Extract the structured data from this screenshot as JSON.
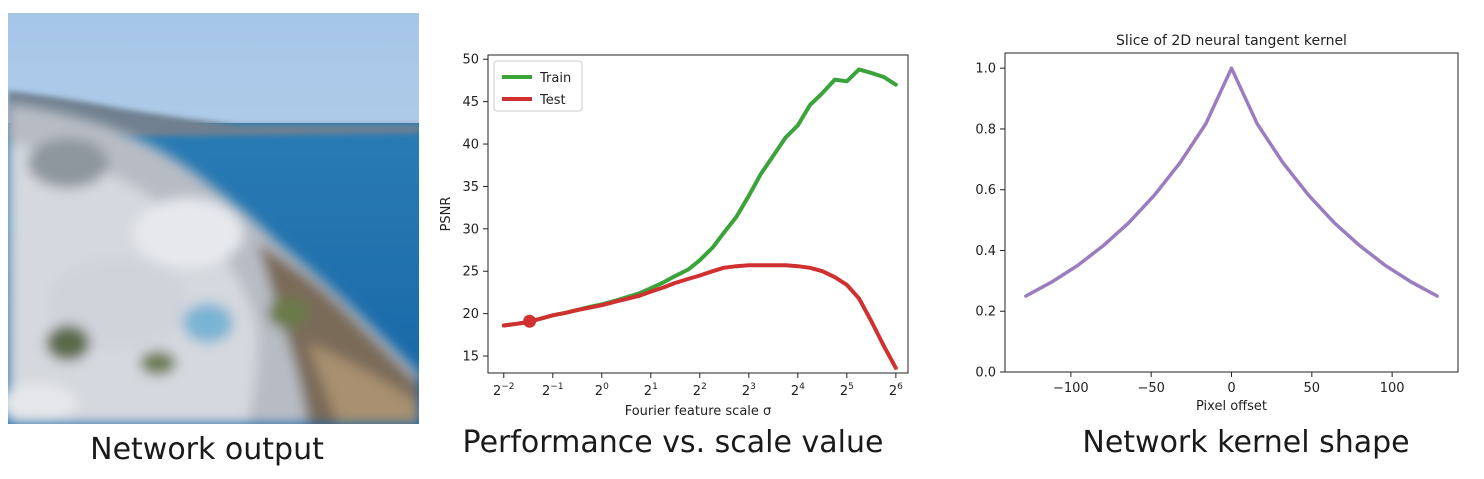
{
  "captions": {
    "photo": "Network output",
    "chart1": "Performance vs. scale value",
    "chart2": "Network kernel shape"
  },
  "colors": {
    "train": "#3aa33a",
    "test": "#d03030",
    "kernel": "#9a7cc0",
    "sky": "#a9c8e6",
    "sea": "#1b72b0"
  },
  "chart_data": [
    {
      "type": "line",
      "title": "",
      "xlabel": "Fourier feature scale σ",
      "ylabel": "PSNR",
      "xscale": "log2",
      "xlim": [
        0.2,
        76
      ],
      "ylim": [
        13,
        50.5
      ],
      "xticks": [
        {
          "value": 0.25,
          "base": "2",
          "exp": "−2"
        },
        {
          "value": 0.5,
          "base": "2",
          "exp": "−1"
        },
        {
          "value": 1,
          "base": "2",
          "exp": "0"
        },
        {
          "value": 2,
          "base": "2",
          "exp": "1"
        },
        {
          "value": 4,
          "base": "2",
          "exp": "2"
        },
        {
          "value": 8,
          "base": "2",
          "exp": "3"
        },
        {
          "value": 16,
          "base": "2",
          "exp": "4"
        },
        {
          "value": 32,
          "base": "2",
          "exp": "5"
        },
        {
          "value": 64,
          "base": "2",
          "exp": "6"
        }
      ],
      "yticks": [
        15,
        20,
        25,
        30,
        35,
        40,
        45,
        50
      ],
      "legend": {
        "position": "top-left"
      },
      "series": [
        {
          "name": "Train",
          "color": "#3aa33a",
          "x": [
            0.25,
            0.3,
            0.35,
            0.42,
            0.5,
            0.6,
            0.7,
            0.84,
            1.0,
            1.2,
            1.4,
            1.7,
            2.0,
            2.4,
            2.8,
            3.4,
            4.0,
            4.8,
            5.6,
            6.7,
            8.0,
            9.5,
            11.3,
            13.5,
            16.0,
            19.0,
            22.6,
            27.0,
            32.0,
            38.0,
            45.0,
            54.0,
            64.0
          ],
          "y": [
            18.6,
            18.8,
            19.0,
            19.4,
            19.8,
            20.1,
            20.4,
            20.8,
            21.1,
            21.5,
            21.9,
            22.4,
            23.0,
            23.7,
            24.4,
            25.2,
            26.3,
            27.8,
            29.5,
            31.4,
            33.9,
            36.5,
            38.6,
            40.8,
            42.2,
            44.6,
            46.0,
            47.6,
            47.4,
            48.8,
            48.4,
            47.9,
            47.0
          ]
        },
        {
          "name": "Test",
          "color": "#d03030",
          "x": [
            0.25,
            0.3,
            0.35,
            0.42,
            0.5,
            0.6,
            0.7,
            0.84,
            1.0,
            1.2,
            1.4,
            1.7,
            2.0,
            2.4,
            2.8,
            3.4,
            4.0,
            4.8,
            5.6,
            6.7,
            8.0,
            9.5,
            11.3,
            13.5,
            16.0,
            19.0,
            22.6,
            27.0,
            32.0,
            38.0,
            45.0,
            54.0,
            64.0
          ],
          "y": [
            18.6,
            18.8,
            19.0,
            19.4,
            19.8,
            20.1,
            20.4,
            20.7,
            21.0,
            21.4,
            21.7,
            22.1,
            22.6,
            23.1,
            23.6,
            24.1,
            24.5,
            25.0,
            25.4,
            25.6,
            25.7,
            25.7,
            25.7,
            25.7,
            25.6,
            25.4,
            25.0,
            24.3,
            23.4,
            21.8,
            19.2,
            16.2,
            13.6
          ]
        }
      ],
      "markers": [
        {
          "x": 0.36,
          "y": 19.1,
          "color": "#d03030"
        }
      ]
    },
    {
      "type": "line",
      "title": "Slice of 2D neural tangent kernel",
      "xlabel": "Pixel offset",
      "ylabel": "",
      "xlim": [
        -141,
        141
      ],
      "ylim": [
        0,
        1.05
      ],
      "xticks": [
        -100,
        -50,
        0,
        50,
        100
      ],
      "xtick_labels": [
        "−100",
        "−50",
        "0",
        "50",
        "100"
      ],
      "yticks": [
        0.0,
        0.2,
        0.4,
        0.6,
        0.8,
        1.0
      ],
      "ytick_labels": [
        "0.0",
        "0.2",
        "0.4",
        "0.6",
        "0.8",
        "1.0"
      ],
      "series": [
        {
          "color": "#9a7cc0",
          "x": [
            -128,
            -112,
            -96,
            -80,
            -64,
            -48,
            -32,
            -16,
            0,
            16,
            32,
            48,
            64,
            80,
            96,
            112,
            128
          ],
          "y": [
            0.25,
            0.296,
            0.35,
            0.415,
            0.491,
            0.582,
            0.689,
            0.817,
            1.0,
            0.817,
            0.689,
            0.582,
            0.491,
            0.415,
            0.35,
            0.296,
            0.25
          ]
        }
      ]
    }
  ]
}
